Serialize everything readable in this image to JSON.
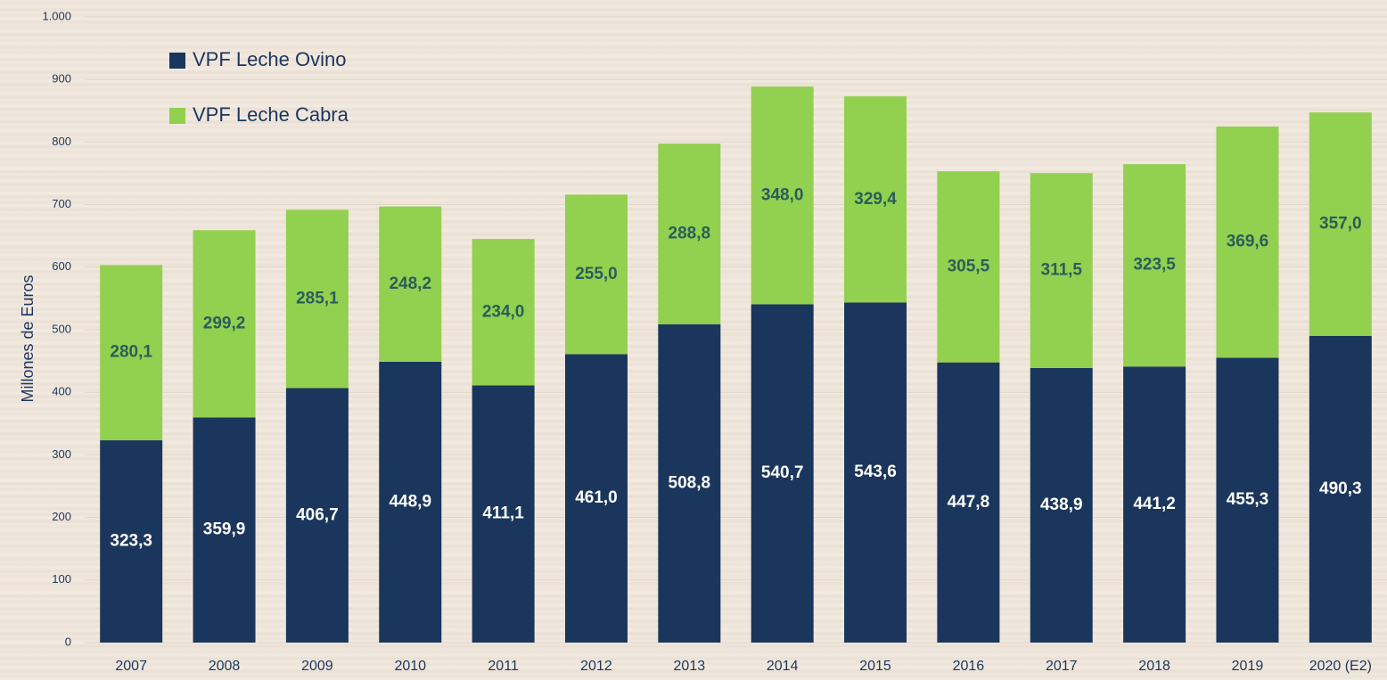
{
  "chart_data": {
    "type": "stacked_bar",
    "y_label": "Millones de Euros",
    "categories": [
      "2007",
      "2008",
      "2009",
      "2010",
      "2011",
      "2012",
      "2013",
      "2014",
      "2015",
      "2016",
      "2017",
      "2018",
      "2019",
      "2020 (E2)"
    ],
    "series": [
      {
        "name": "VPF Leche Ovino",
        "color": "#1b365d",
        "label_color": "#ffffff",
        "values": [
          323.3,
          359.9,
          406.7,
          448.9,
          411.1,
          461.0,
          508.8,
          540.7,
          543.6,
          447.8,
          438.9,
          441.2,
          455.3,
          490.3
        ],
        "value_labels": [
          "323,3",
          "359,9",
          "406,7",
          "448,9",
          "411,1",
          "461,0",
          "508,8",
          "540,7",
          "543,6",
          "447,8",
          "438,9",
          "441,2",
          "455,3",
          "490,3"
        ]
      },
      {
        "name": "VPF Leche Cabra",
        "color": "#92d050",
        "label_color": "#2b5d5a",
        "values": [
          280.1,
          299.2,
          285.1,
          248.2,
          234.0,
          255.0,
          288.8,
          348.0,
          329.4,
          305.5,
          311.5,
          323.5,
          369.6,
          357.0
        ],
        "value_labels": [
          "280,1",
          "299,2",
          "285,1",
          "248,2",
          "234,0",
          "255,0",
          "288,8",
          "348,0",
          "329,4",
          "305,5",
          "311,5",
          "323,5",
          "369,6",
          "357,0"
        ]
      }
    ],
    "ylim": [
      0,
      1000
    ],
    "yticks": [
      0,
      100,
      200,
      300,
      400,
      500,
      600,
      700,
      800,
      900,
      {
        "value": 1000,
        "label": "1.000"
      }
    ],
    "grid": true,
    "legend": "top-left"
  }
}
